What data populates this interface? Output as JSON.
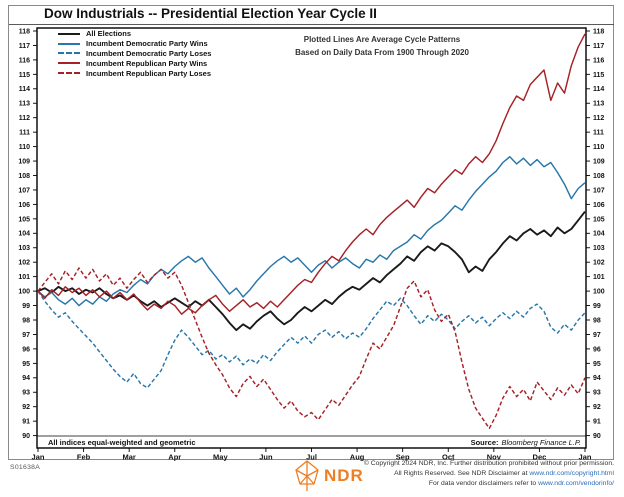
{
  "title": "Dow Industrials -- Presidential Election Year Cycle II",
  "annotation": {
    "line1": "Plotted Lines Are Average Cycle Patterns",
    "line2": "Based on Daily Data From 1900 Through 2020"
  },
  "legend": [
    {
      "label": "All Elections",
      "color": "#1a1a1a",
      "style": "solid"
    },
    {
      "label": "Incumbent Democratic Party Wins",
      "color": "#2877ab",
      "style": "solid"
    },
    {
      "label": "Incumbent Democratic Party Loses",
      "color": "#2877ab",
      "style": "dashed"
    },
    {
      "label": "Incumbent Republican Party Wins",
      "color": "#a62126",
      "style": "solid"
    },
    {
      "label": "Incumbent Republican Party Loses",
      "color": "#a62126",
      "style": "dashed"
    }
  ],
  "footnote": {
    "left": "All indices equal-weighted and geometric",
    "source_label": "Source:",
    "source_value": "Bloomberg Finance L.P."
  },
  "footer": {
    "chart_id": "S01638A",
    "logo_text": "NDR",
    "copyright_line1": "© Copyright 2024 NDR, Inc. Further distribution prohibited without prior permission.",
    "line2_prefix": "All Rights Reserved. See NDR Disclaimer at ",
    "line2_link": "www.ndr.com/copyright.html",
    "line3_prefix": "For data vendor disclaimers refer to ",
    "line3_link": "www.ndr.com/vendorinfo/"
  },
  "colors": {
    "black_series": "#1a1a1a",
    "blue_series": "#2877ab",
    "red_series": "#a62126",
    "ndr_orange": "#ef7d22",
    "link_blue": "#2b6cb8",
    "frame": "#000000",
    "outer_box": "#8a8a8a"
  },
  "chart_data": {
    "type": "line",
    "title": "Dow Industrials -- Presidential Election Year Cycle II",
    "xlabel": "",
    "ylabel": "",
    "x_unit": "months, 0 = Jan 1 through 12 = following Jan",
    "x_step": 0.15,
    "ylim": [
      89,
      118.3
    ],
    "grid": false,
    "legend_position": "top-left-inside",
    "y_ticks": [
      90,
      91,
      92,
      93,
      94,
      95,
      96,
      97,
      98,
      99,
      100,
      101,
      102,
      103,
      104,
      105,
      106,
      107,
      108,
      109,
      110,
      111,
      112,
      113,
      114,
      115,
      116,
      117,
      118
    ],
    "x_tick_labels": [
      "Jan",
      "Feb",
      "Mar",
      "Apr",
      "May",
      "Jun",
      "Jul",
      "Aug",
      "Sep",
      "Oct",
      "Nov",
      "Dec",
      "Jan"
    ],
    "series": [
      {
        "name": "All Elections",
        "color": "#1a1a1a",
        "style": "solid",
        "values": [
          100.0,
          100.2,
          99.9,
          100.3,
          100.0,
          100.2,
          99.8,
          100.1,
          99.9,
          100.2,
          99.8,
          99.5,
          99.7,
          99.4,
          99.7,
          99.3,
          99.0,
          99.3,
          98.9,
          99.2,
          99.5,
          99.2,
          98.9,
          99.3,
          99.0,
          99.4,
          98.9,
          98.4,
          97.8,
          97.3,
          97.7,
          97.4,
          97.9,
          98.3,
          98.6,
          98.1,
          97.7,
          98.0,
          98.5,
          98.9,
          98.6,
          99.0,
          99.4,
          99.1,
          99.6,
          100.0,
          100.3,
          100.1,
          100.5,
          100.9,
          100.6,
          101.1,
          101.5,
          101.9,
          102.4,
          102.1,
          102.7,
          103.1,
          102.8,
          103.3,
          103.1,
          102.7,
          102.2,
          101.3,
          101.7,
          101.4,
          102.2,
          102.7,
          103.3,
          103.8,
          103.5,
          104.0,
          104.3,
          103.9,
          104.2,
          103.8,
          104.4,
          104.0,
          104.3,
          104.9,
          105.5
        ]
      },
      {
        "name": "Incumbent Democratic Party Wins",
        "color": "#2877ab",
        "style": "solid",
        "values": [
          100.0,
          99.6,
          99.9,
          99.4,
          99.1,
          99.5,
          99.0,
          99.4,
          99.1,
          99.6,
          99.3,
          99.8,
          100.1,
          99.9,
          100.4,
          100.8,
          100.5,
          101.1,
          101.5,
          101.2,
          101.7,
          102.1,
          102.4,
          102.0,
          102.3,
          101.6,
          101.0,
          100.4,
          99.8,
          100.2,
          99.6,
          100.1,
          100.7,
          101.2,
          101.7,
          102.1,
          102.4,
          102.0,
          102.3,
          101.8,
          101.3,
          101.8,
          102.1,
          101.6,
          102.0,
          102.3,
          101.9,
          101.6,
          102.2,
          102.0,
          102.5,
          102.2,
          102.8,
          103.1,
          103.4,
          103.9,
          103.6,
          104.2,
          104.6,
          104.9,
          105.4,
          105.9,
          105.6,
          106.3,
          106.9,
          107.4,
          107.9,
          108.3,
          108.9,
          109.3,
          108.8,
          109.2,
          108.7,
          109.1,
          108.6,
          108.9,
          108.2,
          107.4,
          106.4,
          107.1,
          107.5
        ]
      },
      {
        "name": "Incumbent Democratic Party Loses",
        "color": "#2877ab",
        "style": "dashed",
        "values": [
          100.0,
          99.3,
          98.7,
          98.2,
          98.5,
          97.9,
          97.4,
          96.9,
          96.4,
          95.8,
          95.2,
          94.6,
          94.1,
          93.7,
          94.3,
          93.6,
          93.3,
          93.9,
          94.5,
          95.6,
          96.6,
          97.3,
          96.8,
          96.2,
          95.6,
          95.9,
          95.3,
          95.6,
          95.1,
          95.5,
          94.9,
          95.3,
          95.0,
          95.6,
          95.2,
          95.8,
          96.3,
          96.8,
          96.4,
          96.9,
          96.4,
          97.0,
          97.3,
          96.8,
          97.2,
          96.7,
          97.1,
          96.8,
          97.4,
          98.1,
          98.7,
          99.3,
          99.0,
          99.5,
          99.0,
          98.3,
          97.7,
          98.3,
          97.9,
          98.4,
          98.0,
          97.4,
          97.9,
          98.3,
          97.8,
          98.2,
          97.6,
          98.1,
          98.5,
          98.1,
          98.6,
          98.2,
          98.8,
          99.1,
          98.6,
          97.5,
          97.1,
          97.7,
          97.3,
          98.0,
          98.5
        ]
      },
      {
        "name": "Incumbent Republican Party Wins",
        "color": "#a62126",
        "style": "solid",
        "values": [
          100.0,
          99.5,
          100.1,
          99.7,
          100.3,
          99.9,
          100.2,
          99.7,
          100.1,
          99.6,
          100.0,
          99.5,
          99.9,
          99.4,
          99.8,
          99.2,
          98.7,
          99.1,
          98.8,
          99.3,
          99.0,
          98.4,
          98.8,
          98.5,
          99.0,
          99.4,
          99.7,
          99.1,
          98.6,
          99.0,
          99.4,
          98.9,
          99.2,
          98.8,
          99.3,
          98.9,
          99.4,
          99.9,
          100.4,
          100.8,
          100.6,
          101.3,
          101.9,
          102.4,
          102.1,
          102.8,
          103.4,
          103.9,
          104.3,
          103.9,
          104.6,
          105.1,
          105.5,
          105.9,
          106.3,
          105.8,
          106.5,
          107.1,
          106.8,
          107.4,
          107.9,
          108.4,
          108.1,
          108.8,
          109.3,
          108.9,
          109.5,
          110.4,
          111.6,
          112.7,
          113.5,
          113.2,
          114.3,
          114.8,
          115.3,
          113.2,
          114.4,
          113.7,
          115.6,
          116.9,
          117.8
        ]
      },
      {
        "name": "Incumbent Republican Party Loses",
        "color": "#a62126",
        "style": "dashed",
        "values": [
          100.0,
          100.6,
          101.2,
          100.5,
          101.4,
          100.8,
          101.6,
          100.9,
          101.5,
          100.7,
          101.2,
          100.4,
          100.9,
          100.2,
          100.8,
          101.3,
          100.6,
          101.1,
          101.5,
          100.9,
          101.3,
          100.4,
          99.2,
          98.0,
          96.8,
          95.7,
          94.9,
          94.2,
          93.3,
          92.7,
          93.6,
          94.1,
          93.4,
          93.9,
          93.2,
          92.5,
          91.9,
          92.4,
          91.7,
          91.3,
          91.6,
          91.1,
          91.8,
          92.5,
          92.1,
          92.8,
          93.5,
          94.1,
          95.3,
          96.4,
          96.0,
          96.8,
          97.6,
          98.9,
          100.2,
          100.7,
          99.6,
          100.1,
          98.7,
          97.9,
          98.4,
          97.2,
          95.1,
          93.2,
          91.9,
          91.2,
          90.5,
          91.4,
          92.6,
          93.4,
          92.7,
          93.2,
          92.4,
          93.7,
          93.1,
          92.5,
          93.3,
          92.8,
          93.5,
          92.9,
          94.0
        ]
      }
    ]
  }
}
